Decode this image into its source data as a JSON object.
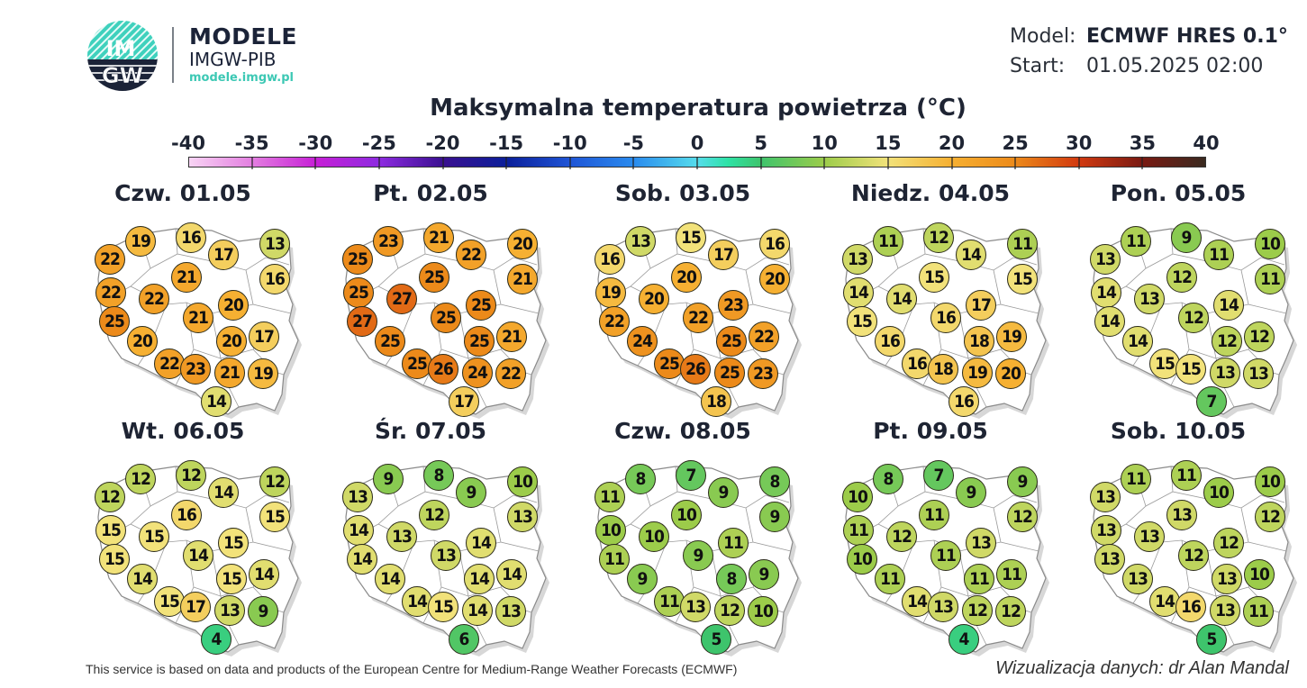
{
  "header": {
    "logo_text_top": "IM",
    "logo_text_bottom": "GW",
    "brand_title": "MODELE",
    "brand_subtitle": "IMGW-PIB",
    "brand_url": "modele.imgw.pl",
    "model_label": "Model:",
    "model_value": "ECMWF HRES 0.1°",
    "start_label": "Start:",
    "start_value": "01.05.2025 02:00"
  },
  "title": "Maksymalna temperatura powietrza (°C)",
  "colorbar": {
    "ticks": [
      "-40",
      "-35",
      "-30",
      "-25",
      "-20",
      "-15",
      "-10",
      "-5",
      "0",
      "5",
      "10",
      "15",
      "20",
      "25",
      "30",
      "35",
      "40"
    ],
    "min": -40,
    "max": 40
  },
  "stations_xy": [
    [
      27,
      50
    ],
    [
      61,
      30
    ],
    [
      117,
      26
    ],
    [
      153,
      45
    ],
    [
      210,
      33
    ],
    [
      210,
      72
    ],
    [
      28,
      87
    ],
    [
      76,
      94
    ],
    [
      112,
      70
    ],
    [
      164,
      101
    ],
    [
      125,
      115
    ],
    [
      32,
      119
    ],
    [
      63,
      141
    ],
    [
      93,
      166
    ],
    [
      122,
      172
    ],
    [
      162,
      141
    ],
    [
      198,
      136
    ],
    [
      160,
      176
    ],
    [
      197,
      177
    ],
    [
      145,
      208
    ]
  ],
  "stations_order_note": "",
  "panels": [
    {
      "label": "Czw. 01.05",
      "values": [
        22,
        19,
        16,
        17,
        13,
        16,
        22,
        22,
        21,
        20,
        21,
        25,
        20,
        22,
        23,
        20,
        17,
        21,
        19,
        14
      ]
    },
    {
      "label": "Pt. 02.05",
      "values": [
        25,
        23,
        21,
        22,
        20,
        21,
        25,
        27,
        25,
        25,
        25,
        27,
        25,
        25,
        26,
        25,
        21,
        24,
        22,
        17
      ]
    },
    {
      "label": "Sob. 03.05",
      "values": [
        16,
        13,
        15,
        17,
        16,
        20,
        19,
        20,
        20,
        23,
        22,
        22,
        24,
        25,
        26,
        25,
        22,
        25,
        23,
        18
      ]
    },
    {
      "label": "Niedz. 04.05",
      "values": [
        13,
        11,
        12,
        14,
        11,
        15,
        14,
        14,
        15,
        17,
        16,
        15,
        16,
        16,
        18,
        18,
        19,
        19,
        20,
        16
      ]
    },
    {
      "label": "Pon. 05.05",
      "values": [
        13,
        11,
        9,
        11,
        10,
        11,
        14,
        13,
        12,
        14,
        12,
        14,
        14,
        15,
        15,
        12,
        12,
        13,
        13,
        7
      ]
    },
    {
      "label": "Wt. 06.05",
      "values": [
        12,
        12,
        12,
        14,
        12,
        15,
        15,
        15,
        16,
        15,
        14,
        15,
        14,
        15,
        17,
        15,
        14,
        13,
        9,
        4
      ]
    },
    {
      "label": "Śr. 07.05",
      "values": [
        13,
        9,
        8,
        9,
        10,
        13,
        14,
        13,
        12,
        14,
        13,
        14,
        14,
        14,
        15,
        14,
        14,
        14,
        13,
        6
      ]
    },
    {
      "label": "Czw. 08.05",
      "values": [
        11,
        8,
        7,
        9,
        8,
        9,
        10,
        10,
        10,
        11,
        9,
        11,
        9,
        11,
        13,
        8,
        9,
        12,
        10,
        5
      ]
    },
    {
      "label": "Pt. 09.05",
      "values": [
        10,
        8,
        7,
        9,
        9,
        12,
        11,
        12,
        11,
        13,
        11,
        10,
        11,
        14,
        13,
        11,
        11,
        12,
        12,
        4
      ]
    },
    {
      "label": "Sob. 10.05",
      "values": [
        13,
        11,
        11,
        10,
        10,
        12,
        13,
        13,
        13,
        12,
        12,
        13,
        13,
        14,
        16,
        13,
        10,
        13,
        11,
        5
      ]
    }
  ],
  "footer": {
    "left": "This service is based on data and products of the European Centre for Medium-Range Weather Forecasts (ECMWF)",
    "right": "Wizualizacja danych: dr Alan Mandal"
  }
}
